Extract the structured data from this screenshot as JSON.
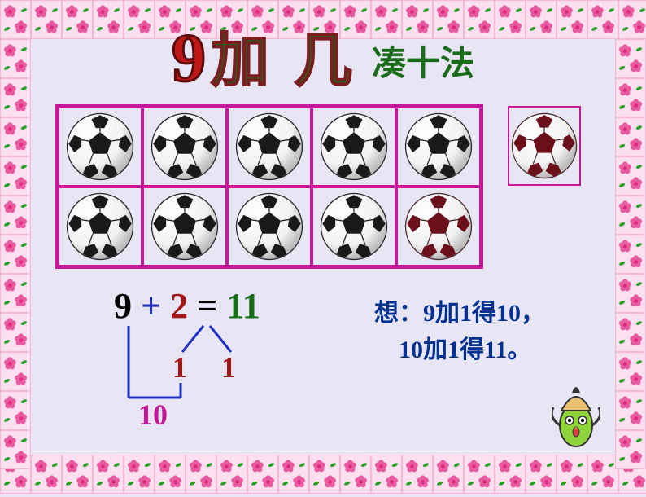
{
  "title": {
    "nine": "9",
    "rest": "加 几",
    "subtitle": "凑十法",
    "main_color": "#1a6b1a",
    "main_stroke": "#7a1f1f",
    "nine_color": "#c01818"
  },
  "grid": {
    "rows": 2,
    "cols": 5,
    "border_color": "#c8189a",
    "cells": [
      {
        "type": "black"
      },
      {
        "type": "black"
      },
      {
        "type": "black"
      },
      {
        "type": "black"
      },
      {
        "type": "black"
      },
      {
        "type": "black"
      },
      {
        "type": "black"
      },
      {
        "type": "black"
      },
      {
        "type": "black"
      },
      {
        "type": "red"
      }
    ],
    "side_ball": {
      "type": "red"
    }
  },
  "ball_styles": {
    "black": {
      "spot": "#1a1a1a",
      "panel": "#f2f2f2",
      "seam": "#2a2a2a"
    },
    "red": {
      "spot": "#6b0f1a",
      "panel": "#f2f2f2",
      "seam": "#4a2a2a"
    }
  },
  "equation": {
    "a": "9",
    "op": "+",
    "b": "2",
    "eq": "=",
    "result": "11",
    "split_left": "1",
    "split_right": "1",
    "ten": "10",
    "colors": {
      "a": "#000000",
      "op": "#2030c0",
      "b": "#a01818",
      "eq": "#000000",
      "result": "#1a6b1a",
      "split": "#a01818",
      "ten": "#c8189a",
      "lines": "#2030c0"
    }
  },
  "think": {
    "label": "想：",
    "line1_rest": "9加1得10，",
    "line2": "10加1得11。",
    "color": "#003090"
  },
  "frame": {
    "tile_bg": "#fce0ef",
    "tile_border": "#f7b6d6",
    "flower_pink": "#e85aa0",
    "flower_center": "#e02878",
    "leaf": "#2aa02a"
  },
  "pencil": {
    "body": "#8fd43b",
    "tip": "#e8c070",
    "lead": "#333333",
    "eye": "#ffffff",
    "pupil": "#000000",
    "mouth": "#d04040",
    "arm": "#333333"
  }
}
